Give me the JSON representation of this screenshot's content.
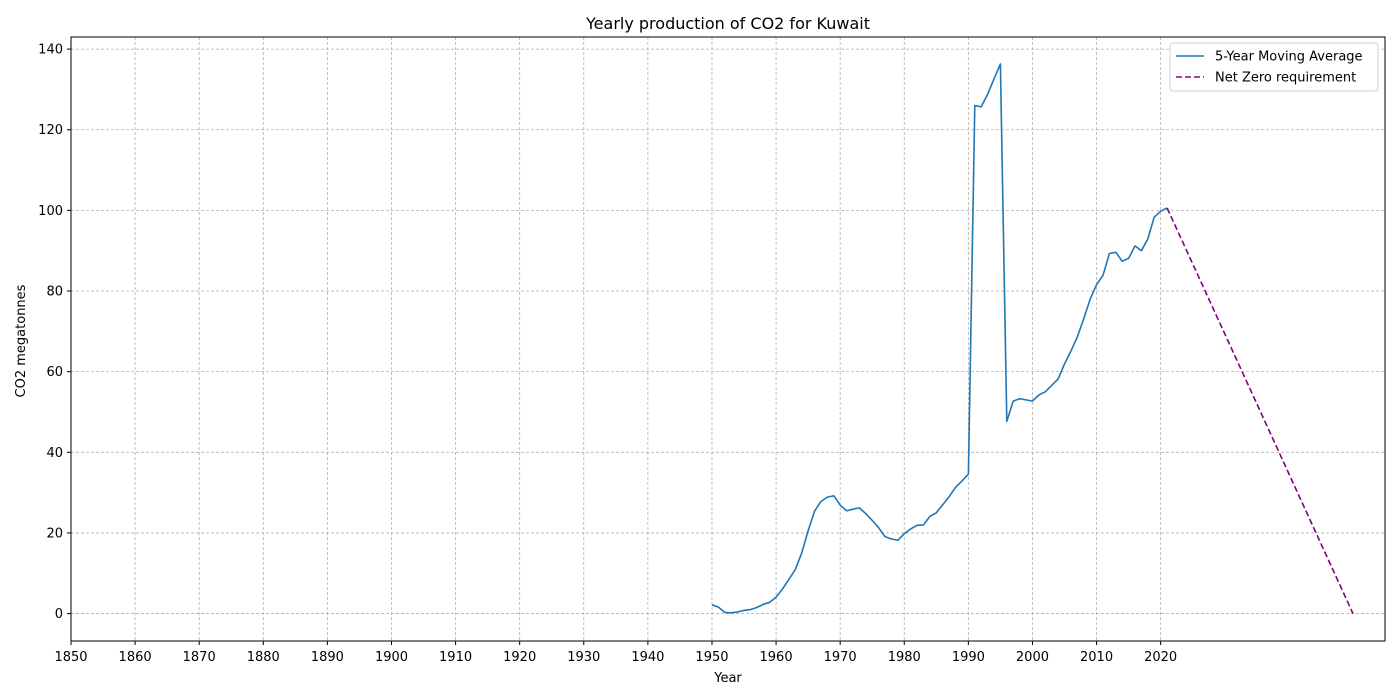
{
  "chart_data": {
    "type": "line",
    "title": "Yearly production of CO2 for Kuwait",
    "xlabel": "Year",
    "ylabel": "CO2 megatonnes",
    "xlim": [
      1850,
      2055
    ],
    "ylim": [
      -6.8,
      143
    ],
    "x_ticks": [
      1850,
      1860,
      1870,
      1880,
      1890,
      1900,
      1910,
      1920,
      1930,
      1940,
      1950,
      1960,
      1970,
      1980,
      1990,
      2000,
      2010,
      2020
    ],
    "y_ticks": [
      0,
      20,
      40,
      60,
      80,
      100,
      120,
      140
    ],
    "grid": true,
    "legend_position": "top-right",
    "series": [
      {
        "name": "5-Year Moving Average",
        "color": "#1f77b4",
        "style": "solid",
        "x": [
          1950,
          1951,
          1952,
          1953,
          1954,
          1955,
          1956,
          1957,
          1958,
          1959,
          1960,
          1961,
          1962,
          1963,
          1964,
          1965,
          1966,
          1967,
          1968,
          1969,
          1970,
          1971,
          1972,
          1973,
          1974,
          1975,
          1976,
          1977,
          1978,
          1979,
          1980,
          1981,
          1982,
          1983,
          1984,
          1985,
          1986,
          1987,
          1988,
          1989,
          1990,
          1991,
          1992,
          1993,
          1994,
          1995,
          1996,
          1997,
          1998,
          1999,
          2000,
          2001,
          2002,
          2003,
          2004,
          2005,
          2006,
          2007,
          2008,
          2009,
          2010,
          2011,
          2012,
          2013,
          2014,
          2015,
          2016,
          2017,
          2018,
          2019,
          2020,
          2021
        ],
        "values": [
          2.2,
          1.6,
          0.3,
          0.2,
          0.4,
          0.8,
          1.0,
          1.5,
          2.3,
          2.8,
          4.1,
          6.1,
          8.5,
          10.9,
          15.0,
          20.5,
          25.4,
          27.8,
          28.9,
          29.2,
          26.9,
          25.5,
          25.9,
          26.2,
          24.8,
          23.1,
          21.3,
          19.1,
          18.5,
          18.2,
          19.8,
          21.0,
          21.9,
          22.0,
          24.1,
          25.0,
          27.0,
          29.0,
          31.3,
          32.9,
          34.6,
          126.0,
          125.7,
          128.8,
          132.6,
          136.3,
          47.7,
          52.7,
          53.3,
          53.0,
          52.7,
          54.2,
          55.0,
          56.6,
          58.2,
          61.9,
          65.1,
          68.6,
          73.1,
          78.0,
          81.6,
          83.9,
          89.3,
          89.6,
          87.4,
          88.1,
          91.2,
          90.0,
          92.9,
          98.3,
          99.8,
          100.6
        ]
      },
      {
        "name": "Net Zero requirement",
        "color": "#800080",
        "style": "dashed",
        "x": [
          2021,
          2050
        ],
        "values": [
          100.6,
          0
        ]
      }
    ]
  }
}
